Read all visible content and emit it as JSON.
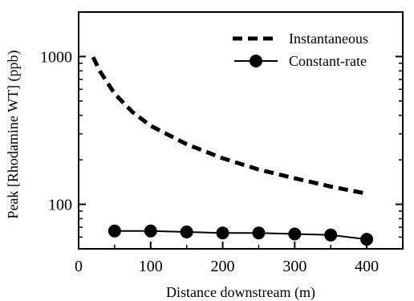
{
  "chart_data": {
    "type": "line",
    "title": "",
    "xlabel": "Distance downstream (m)",
    "ylabel": "Peak [Rhodamine WT] (ppb)",
    "xlim": [
      0,
      450
    ],
    "ylim": [
      50,
      2000
    ],
    "yscale": "log",
    "grid": false,
    "legend_position": "top-right",
    "x_ticks": [
      0,
      100,
      200,
      300,
      400
    ],
    "x_tick_labels": [
      "0",
      "100",
      "200",
      "300",
      "400"
    ],
    "y_ticks": [
      100,
      1000
    ],
    "y_tick_labels": [
      "100",
      "1000"
    ],
    "series": [
      {
        "name": "Instantaneous",
        "style": "dashed",
        "color": "#000000",
        "x": [
          20,
          30,
          50,
          75,
          100,
          150,
          200,
          250,
          300,
          350,
          400
        ],
        "y": [
          990,
          790,
          560,
          420,
          340,
          255,
          205,
          172,
          150,
          132,
          118
        ]
      },
      {
        "name": "Constant-rate",
        "style": "solid-markers",
        "color": "#000000",
        "x": [
          50,
          100,
          150,
          200,
          250,
          300,
          350,
          400
        ],
        "y": [
          66,
          66,
          65,
          64,
          64,
          63,
          62,
          58
        ]
      }
    ]
  }
}
